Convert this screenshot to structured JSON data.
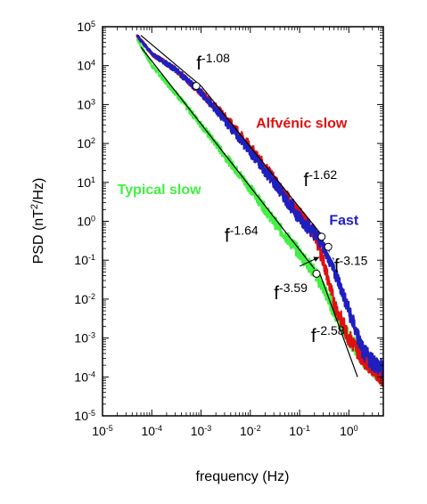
{
  "chart_data": {
    "type": "line",
    "xlabel": "frequency (Hz)",
    "ylabel_main": "PSD (nT",
    "ylabel_sup": "2",
    "ylabel_tail": "/Hz)",
    "x_scale": "log",
    "y_scale": "log",
    "xlim": [
      1e-05,
      5
    ],
    "ylim": [
      1e-05,
      100000
    ],
    "grid": false,
    "x_ticks": [
      {
        "base": "10",
        "exp": "-5"
      },
      {
        "base": "10",
        "exp": "-4"
      },
      {
        "base": "10",
        "exp": "-3"
      },
      {
        "base": "10",
        "exp": "-2"
      },
      {
        "base": "10",
        "exp": "-1"
      },
      {
        "base": "10",
        "exp": "0"
      }
    ],
    "y_ticks": [
      {
        "base": "10",
        "exp": "-5"
      },
      {
        "base": "10",
        "exp": "-4"
      },
      {
        "base": "10",
        "exp": "-3"
      },
      {
        "base": "10",
        "exp": "-2"
      },
      {
        "base": "10",
        "exp": "-1"
      },
      {
        "base": "10",
        "exp": "0"
      },
      {
        "base": "10",
        "exp": "1"
      },
      {
        "base": "10",
        "exp": "2"
      },
      {
        "base": "10",
        "exp": "3"
      },
      {
        "base": "10",
        "exp": "4"
      },
      {
        "base": "10",
        "exp": "5"
      }
    ],
    "series": [
      {
        "name": "Fast",
        "color": "#1f1fbf",
        "x": [
          5e-05,
          0.0001,
          0.0003,
          0.001,
          0.003,
          0.01,
          0.03,
          0.1,
          0.2,
          0.3,
          0.5,
          1.0,
          2.0,
          5.0
        ],
        "y": [
          60000,
          20000,
          8000,
          2000,
          400,
          60,
          10,
          1.2,
          0.5,
          0.25,
          0.06,
          0.005,
          0.0004,
          0.00015
        ]
      },
      {
        "name": "Alfvénic slow",
        "color": "#dd1111",
        "x": [
          5e-05,
          0.0001,
          0.0003,
          0.001,
          0.003,
          0.01,
          0.03,
          0.1,
          0.2,
          0.3,
          0.5,
          1.0,
          2.0,
          5.0
        ],
        "y": [
          60000,
          20000,
          8000,
          2000,
          500,
          80,
          12,
          1.5,
          0.5,
          0.1,
          0.008,
          0.001,
          0.0003,
          0.0001
        ]
      },
      {
        "name": "Typical slow",
        "color": "#44ee44",
        "x": [
          5e-05,
          0.0001,
          0.0003,
          0.001,
          0.003,
          0.01,
          0.03,
          0.1,
          0.2,
          0.3,
          0.5,
          1.0,
          2.0,
          5.0
        ],
        "y": [
          50000,
          10000,
          2000,
          300,
          50,
          7,
          1.0,
          0.15,
          0.05,
          0.02,
          0.005,
          0.001,
          0.0003,
          0.0001
        ]
      }
    ],
    "fits": [
      {
        "x": [
          6e-05,
          0.001
        ],
        "y": [
          60000,
          3000
        ],
        "color": "#000000"
      },
      {
        "x": [
          0.001,
          0.3
        ],
        "y": [
          3000,
          0.4
        ],
        "color": "#000000"
      },
      {
        "x": [
          6e-05,
          0.2
        ],
        "y": [
          30000,
          0.06
        ],
        "color": "#000000"
      },
      {
        "x": [
          0.35,
          5
        ],
        "y": [
          0.2,
          0.0005
        ],
        "color": "#ffffff"
      },
      {
        "x": [
          0.25,
          1.5
        ],
        "y": [
          0.05,
          0.0001
        ],
        "color": "#000000"
      }
    ],
    "breakpoints": [
      {
        "x": 0.0008,
        "y": 3000
      },
      {
        "x": 0.28,
        "y": 0.4
      },
      {
        "x": 0.38,
        "y": 0.22
      },
      {
        "x": 0.22,
        "y": 0.045
      }
    ],
    "annotations": [
      {
        "base": "f",
        "exp": "-1.08",
        "x": 0.0008,
        "y": 8000,
        "size": "big"
      },
      {
        "base": "f",
        "exp": "-1.62",
        "x": 0.12,
        "y": 8,
        "size": "big"
      },
      {
        "base": "f",
        "exp": "-1.64",
        "x": 0.003,
        "y": 0.3,
        "size": "big"
      },
      {
        "base": "f",
        "exp": "-3.15",
        "x": 0.5,
        "y": 0.05,
        "size": "big"
      },
      {
        "base": "f",
        "exp": "-3.59",
        "x": 0.03,
        "y": 0.01,
        "size": "big"
      },
      {
        "base": "f",
        "exp": "-2.58",
        "x": 0.17,
        "y": 0.0008,
        "size": "big"
      }
    ],
    "series_labels": [
      {
        "text": "Alfvénic slow",
        "color": "#dd1111",
        "x": 0.013,
        "y": 250
      },
      {
        "text": "Typical slow",
        "color": "#44ee44",
        "x": 2e-05,
        "y": 5
      },
      {
        "text": "Fast",
        "color": "#1f1fbf",
        "x": 0.4,
        "y": 0.8
      }
    ],
    "arrow": {
      "x1": 0.1,
      "y1": 0.07,
      "x2": 0.25,
      "y2": 0.12
    }
  }
}
